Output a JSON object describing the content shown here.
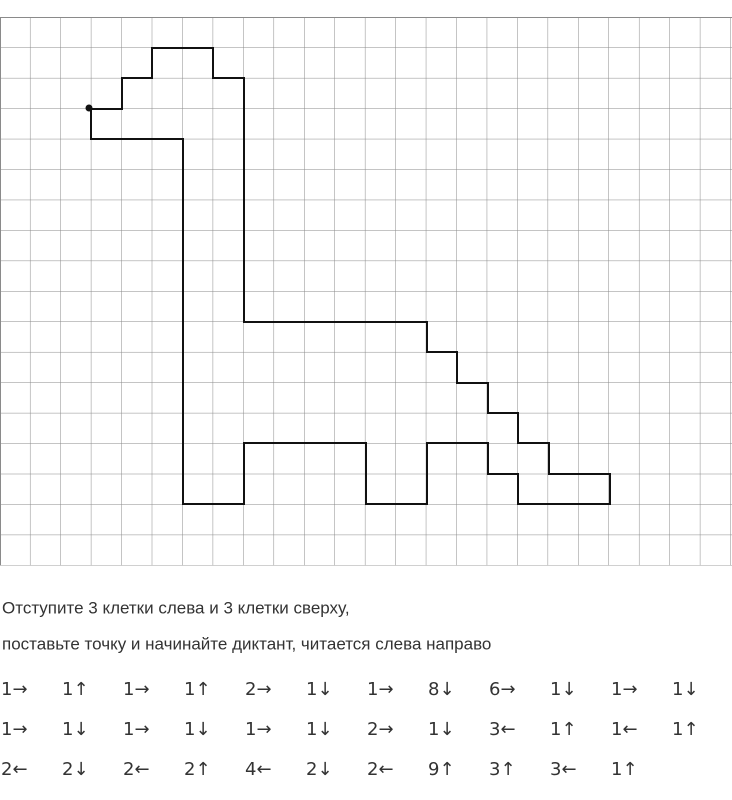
{
  "instructions": [
    "Отступите  3 клетки слева и 3 клетки сверху,",
    "поставьте точку и начинайте диктант, читается слева направо"
  ],
  "steps": [
    [
      "1→",
      "1↑",
      "1→",
      "1↑",
      "2→",
      "1↓",
      "1→",
      "8↓",
      "6→",
      "1↓",
      "1→",
      "1↓"
    ],
    [
      "1→",
      "1↓",
      "1→",
      "1↓",
      "1→",
      "1↓",
      "2→",
      "1↓",
      "3←",
      "1↑",
      "1←",
      "1↑"
    ],
    [
      "2←",
      "2↓",
      "2←",
      "2↑",
      "4←",
      "2↓",
      "2←",
      "9↑",
      "3↑",
      "3←",
      "1↑"
    ]
  ]
}
